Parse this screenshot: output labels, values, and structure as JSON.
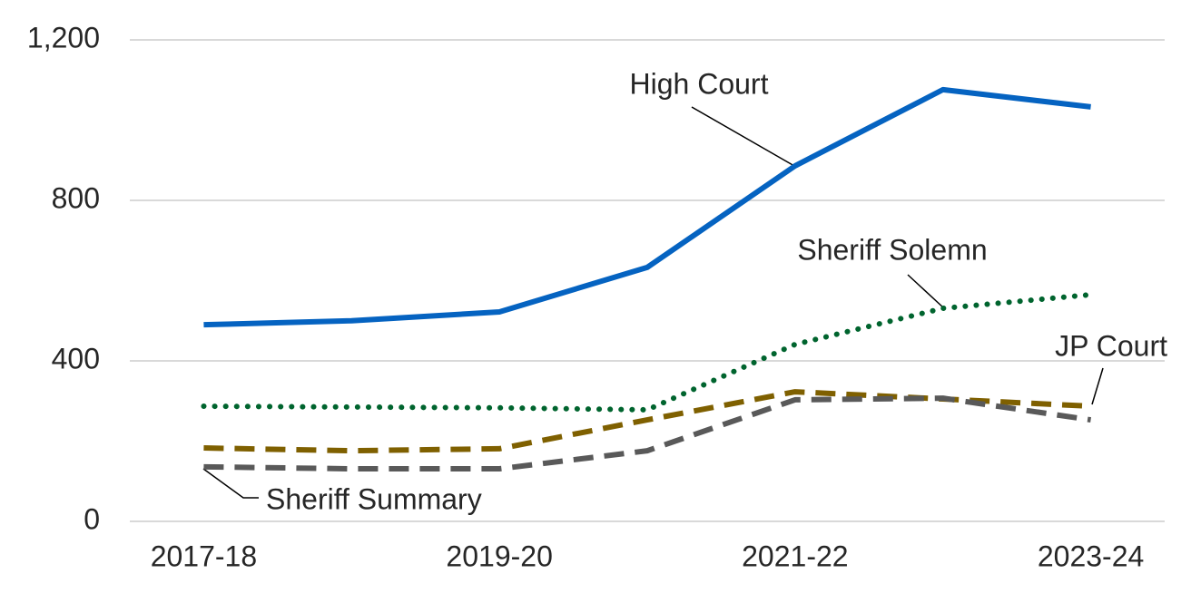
{
  "chart_data": {
    "type": "line",
    "categories": [
      "2017-18",
      null,
      "2019-20",
      null,
      "2021-22",
      null,
      "2023-24"
    ],
    "series": [
      {
        "name": "High Court",
        "color": "#0563c1",
        "line_style": "solid",
        "values": [
          490,
          500,
          522,
          633,
          886,
          1076,
          1033
        ]
      },
      {
        "name": "Sheriff Solemn",
        "color": "#00642e",
        "line_style": "dotted",
        "values": [
          287,
          285,
          283,
          278,
          441,
          531,
          565
        ]
      },
      {
        "name": "JP Court",
        "color": "#7f6000",
        "line_style": "dashed",
        "values": [
          183,
          176,
          181,
          253,
          323,
          305,
          287
        ]
      },
      {
        "name": "Sheriff Summary",
        "color": "#595959",
        "line_style": "dashed",
        "values": [
          136,
          131,
          131,
          176,
          303,
          307,
          253
        ]
      }
    ],
    "ylim": [
      0,
      1200
    ],
    "yticks": [
      0,
      400,
      800,
      {
        "value": 1200,
        "label": "1,200"
      }
    ],
    "grid": true
  }
}
